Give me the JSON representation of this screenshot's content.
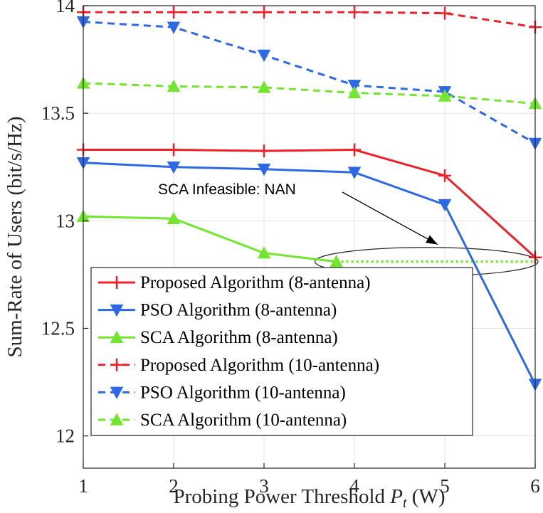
{
  "chart_data": {
    "type": "line",
    "title": "",
    "xlabel": "Probing Power Threshold",
    "xlabel_symbol": "P",
    "xlabel_subscript": "t",
    "xlabel_unit": "(W)",
    "ylabel": "Sum-Rate of Users (bit/s/Hz)",
    "x": [
      1,
      2,
      3,
      4,
      5,
      6
    ],
    "xlim": [
      1,
      6
    ],
    "ylim": [
      11.85,
      14.0
    ],
    "xticks": [
      "1",
      "2",
      "3",
      "4",
      "5",
      "6"
    ],
    "yticks": [
      {
        "value": 12,
        "label": "12"
      },
      {
        "value": 12.5,
        "label": "12.5"
      },
      {
        "value": 13,
        "label": "13"
      },
      {
        "value": 13.5,
        "label": "13.5"
      },
      {
        "value": 14,
        "label": "14"
      }
    ],
    "grid": true,
    "legend_position": "bottom-left",
    "series": [
      {
        "name": "Proposed Algorithm (8-antenna)",
        "color": "#f0202a",
        "dash": "solid",
        "marker": "plus",
        "values": [
          13.33,
          13.33,
          13.325,
          13.33,
          13.21,
          12.83
        ]
      },
      {
        "name": "PSO Algorithm (8-antenna)",
        "color": "#2d68e6",
        "dash": "solid",
        "marker": "triangle-down",
        "values": [
          13.27,
          13.25,
          13.24,
          13.225,
          13.075,
          12.24
        ]
      },
      {
        "name": "SCA Algorithm (8-antenna)",
        "color": "#72e62e",
        "dash": "solid",
        "marker": "triangle-up",
        "x_values": [
          1,
          2,
          3,
          3.8
        ],
        "values": [
          13.02,
          13.01,
          12.85,
          12.81
        ]
      },
      {
        "name": "Proposed Algorithm (10-antenna)",
        "color": "#f0202a",
        "dash": "dashed",
        "marker": "plus",
        "values": [
          13.97,
          13.97,
          13.97,
          13.97,
          13.965,
          13.9
        ]
      },
      {
        "name": "PSO Algorithm (10-antenna)",
        "color": "#2d68e6",
        "dash": "dashed",
        "marker": "triangle-down",
        "values": [
          13.925,
          13.9,
          13.77,
          13.63,
          13.6,
          13.36
        ]
      },
      {
        "name": "SCA Algorithm (10-antenna)",
        "color": "#72e62e",
        "dash": "dashed",
        "marker": "triangle-up",
        "values": [
          13.64,
          13.625,
          13.62,
          13.595,
          13.58,
          13.545
        ]
      }
    ],
    "infeasible_segment": {
      "x_start": 3.8,
      "x_end": 6,
      "y": 12.81,
      "color": "#72e62e",
      "style": "dotted"
    },
    "annotation": {
      "text": "SCA Infeasible: NAN",
      "target_x": 5,
      "target_y": 12.89
    }
  }
}
